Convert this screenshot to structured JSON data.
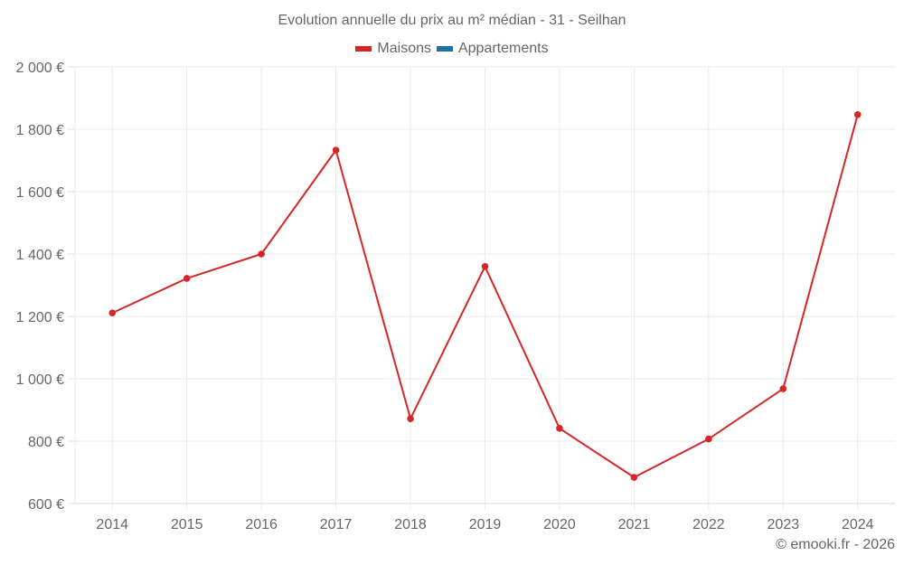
{
  "chart_data": {
    "type": "line",
    "title": "Evolution annuelle du prix au m² médian - 31 - Seilhan",
    "xlabel": "",
    "ylabel": "",
    "categories": [
      "2014",
      "2015",
      "2016",
      "2017",
      "2018",
      "2019",
      "2020",
      "2021",
      "2022",
      "2023",
      "2024"
    ],
    "series": [
      {
        "name": "Maisons",
        "color": "#d62728",
        "values": [
          1211,
          1322,
          1400,
          1733,
          872,
          1360,
          841,
          684,
          807,
          968,
          1847
        ]
      },
      {
        "name": "Appartements",
        "color": "#1f6fa8",
        "values": []
      }
    ],
    "ylim": [
      600,
      2000
    ],
    "yticks": [
      600,
      800,
      1000,
      1200,
      1400,
      1600,
      1800,
      2000
    ],
    "ytick_labels": [
      "600 €",
      "800 €",
      "1 000 €",
      "1 200 €",
      "1 400 €",
      "1 600 €",
      "1 800 €",
      "2 000 €"
    ],
    "grid": true,
    "legend_position": "top"
  },
  "header": {
    "title": "Evolution annuelle du prix au m² médian - 31 - Seilhan"
  },
  "legend": [
    {
      "label": "Maisons",
      "color": "#d62728"
    },
    {
      "label": "Appartements",
      "color": "#1f6fa8"
    }
  ],
  "footer": {
    "credit": "© emooki.fr - 2026"
  }
}
